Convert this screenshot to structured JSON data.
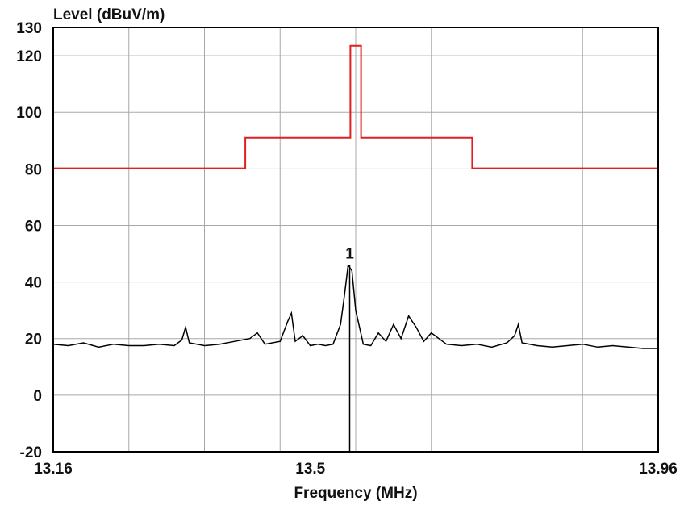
{
  "chart_data": {
    "type": "line",
    "xlabel": "Frequency (MHz)",
    "ylabel": "Level (dBuV/m)",
    "xlim": [
      13.16,
      13.96
    ],
    "ylim": [
      -20,
      130
    ],
    "x_tick_labels": [
      "13.16",
      "13.5",
      "13.96"
    ],
    "x_tick_values": [
      13.16,
      13.5,
      13.96
    ],
    "x_grid_count": 8,
    "y_tick_labels": [
      "130",
      "120",
      "100",
      "80",
      "60",
      "40",
      "20",
      "0",
      "-20"
    ],
    "y_tick_values": [
      130,
      120,
      100,
      80,
      60,
      40,
      20,
      0,
      -20
    ],
    "y_grid_values": [
      130,
      120,
      100,
      80,
      60,
      40,
      20,
      0
    ],
    "grid": true,
    "legend": "none",
    "series": [
      {
        "color": "#e02020",
        "x": [
          13.16,
          13.414,
          13.414,
          13.553,
          13.553,
          13.567,
          13.567,
          13.714,
          13.714,
          13.96
        ],
        "y": [
          80.2,
          80.2,
          91,
          91,
          123.5,
          123.5,
          91,
          91,
          80.2,
          80.2
        ]
      },
      {
        "color": "#000000",
        "x": [
          13.16,
          13.18,
          13.2,
          13.22,
          13.24,
          13.26,
          13.28,
          13.3,
          13.32,
          13.33,
          13.335,
          13.34,
          13.36,
          13.38,
          13.4,
          13.42,
          13.43,
          13.44,
          13.46,
          13.47,
          13.475,
          13.48,
          13.49,
          13.5,
          13.51,
          13.52,
          13.53,
          13.54,
          13.545,
          13.55,
          13.555,
          13.56,
          13.57,
          13.58,
          13.59,
          13.6,
          13.61,
          13.62,
          13.63,
          13.64,
          13.65,
          13.66,
          13.67,
          13.68,
          13.7,
          13.72,
          13.74,
          13.76,
          13.77,
          13.775,
          13.78,
          13.8,
          13.82,
          13.84,
          13.86,
          13.88,
          13.9,
          13.92,
          13.94,
          13.96
        ],
        "y": [
          18,
          17.5,
          18.5,
          17,
          18,
          17.5,
          17.5,
          18,
          17.5,
          19.5,
          24,
          18.5,
          17.5,
          18,
          19,
          20,
          22,
          18,
          19,
          26,
          29,
          19,
          21,
          17.5,
          18,
          17.5,
          18,
          25,
          35,
          46,
          44,
          30,
          18,
          17.5,
          22,
          19,
          25,
          20,
          28,
          24,
          19,
          22,
          20,
          18,
          17.5,
          18,
          17,
          18.5,
          21,
          25,
          18.5,
          17.5,
          17,
          17.5,
          18,
          17,
          17.5,
          17,
          16.5,
          16.5
        ]
      }
    ],
    "markers": [
      {
        "label": "1",
        "x": 13.552,
        "y": 46,
        "line_to_bottom": true
      }
    ]
  }
}
